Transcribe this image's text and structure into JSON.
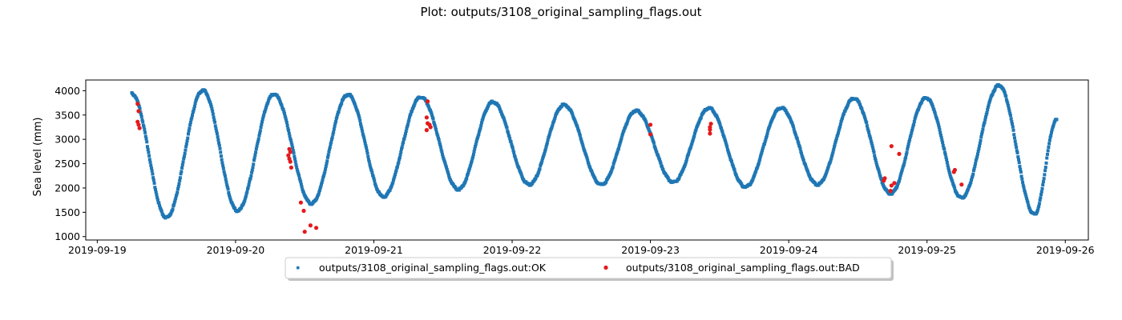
{
  "chart_data": {
    "type": "scatter",
    "title": "Plot: outputs/3108_original_sampling_flags.out",
    "xlabel": "",
    "ylabel": "Sea level (mm)",
    "x_axis": {
      "kind": "date",
      "range": [
        "2019-09-18T22:00",
        "2019-09-26T04:00"
      ],
      "ticks": [
        "2019-09-19",
        "2019-09-20",
        "2019-09-21",
        "2019-09-22",
        "2019-09-23",
        "2019-09-24",
        "2019-09-25",
        "2019-09-26"
      ]
    },
    "y_axis": {
      "range": [
        930,
        4220
      ],
      "ticks": [
        1000,
        1500,
        2000,
        2500,
        3000,
        3500,
        4000
      ]
    },
    "grid": false,
    "legend": {
      "placement": "below-center",
      "frame": true,
      "shadow": true,
      "columns": 2
    },
    "series": [
      {
        "name": "outputs/3108_original_sampling_flags.out:OK",
        "marker": "square",
        "color": "#1f77b4",
        "x_range": [
          "2019-09-19T06:00",
          "2019-09-25T22:30"
        ],
        "extrema": [
          {
            "x": "2019-09-19T06:00",
            "y": 3940
          },
          {
            "x": "2019-09-19T12:00",
            "y": 1390
          },
          {
            "x": "2019-09-19T18:20",
            "y": 4010
          },
          {
            "x": "2019-09-20T00:20",
            "y": 1530
          },
          {
            "x": "2019-09-20T06:40",
            "y": 3930
          },
          {
            "x": "2019-09-20T13:10",
            "y": 1680
          },
          {
            "x": "2019-09-20T19:30",
            "y": 3920
          },
          {
            "x": "2019-09-21T01:40",
            "y": 1820
          },
          {
            "x": "2019-09-21T08:10",
            "y": 3870
          },
          {
            "x": "2019-09-21T14:40",
            "y": 1970
          },
          {
            "x": "2019-09-21T20:40",
            "y": 3770
          },
          {
            "x": "2019-09-22T03:00",
            "y": 2070
          },
          {
            "x": "2019-09-22T09:00",
            "y": 3710
          },
          {
            "x": "2019-09-22T15:30",
            "y": 2070
          },
          {
            "x": "2019-09-22T21:30",
            "y": 3590
          },
          {
            "x": "2019-09-23T04:00",
            "y": 2120
          },
          {
            "x": "2019-09-23T10:10",
            "y": 3640
          },
          {
            "x": "2019-09-23T16:30",
            "y": 2020
          },
          {
            "x": "2019-09-23T22:40",
            "y": 3650
          },
          {
            "x": "2019-09-24T05:00",
            "y": 2070
          },
          {
            "x": "2019-09-24T11:20",
            "y": 3840
          },
          {
            "x": "2019-09-24T17:40",
            "y": 1880
          },
          {
            "x": "2019-09-24T23:50",
            "y": 3850
          },
          {
            "x": "2019-09-25T06:00",
            "y": 1800
          },
          {
            "x": "2019-09-25T12:30",
            "y": 4110
          },
          {
            "x": "2019-09-25T18:40",
            "y": 1460
          },
          {
            "x": "2019-09-25T22:30",
            "y": 3400
          }
        ]
      },
      {
        "name": "outputs/3108_original_sampling_flags.out:BAD",
        "marker": "circle",
        "color": "#e31a1c",
        "points": [
          {
            "x": "2019-09-19T07:00",
            "y": 3730
          },
          {
            "x": "2019-09-19T07:10",
            "y": 3580
          },
          {
            "x": "2019-09-19T07:00",
            "y": 3360
          },
          {
            "x": "2019-09-19T07:10",
            "y": 3300
          },
          {
            "x": "2019-09-19T07:20",
            "y": 3230
          },
          {
            "x": "2019-09-20T09:20",
            "y": 2800
          },
          {
            "x": "2019-09-20T09:30",
            "y": 2740
          },
          {
            "x": "2019-09-20T09:10",
            "y": 2670
          },
          {
            "x": "2019-09-20T09:20",
            "y": 2600
          },
          {
            "x": "2019-09-20T09:30",
            "y": 2540
          },
          {
            "x": "2019-09-20T09:40",
            "y": 2420
          },
          {
            "x": "2019-09-20T11:20",
            "y": 1700
          },
          {
            "x": "2019-09-20T11:50",
            "y": 1530
          },
          {
            "x": "2019-09-20T12:00",
            "y": 1100
          },
          {
            "x": "2019-09-20T13:00",
            "y": 1230
          },
          {
            "x": "2019-09-20T14:00",
            "y": 1180
          },
          {
            "x": "2019-09-21T09:20",
            "y": 3780
          },
          {
            "x": "2019-09-21T09:10",
            "y": 3450
          },
          {
            "x": "2019-09-21T09:20",
            "y": 3330
          },
          {
            "x": "2019-09-21T09:40",
            "y": 3300
          },
          {
            "x": "2019-09-21T09:50",
            "y": 3250
          },
          {
            "x": "2019-09-21T09:10",
            "y": 3190
          },
          {
            "x": "2019-09-23T00:00",
            "y": 3300
          },
          {
            "x": "2019-09-23T00:00",
            "y": 3100
          },
          {
            "x": "2019-09-23T10:30",
            "y": 3320
          },
          {
            "x": "2019-09-23T10:20",
            "y": 3250
          },
          {
            "x": "2019-09-23T10:20",
            "y": 3200
          },
          {
            "x": "2019-09-23T10:20",
            "y": 3120
          },
          {
            "x": "2019-09-24T16:40",
            "y": 2200
          },
          {
            "x": "2019-09-24T16:30",
            "y": 2150
          },
          {
            "x": "2019-09-24T17:50",
            "y": 2860
          },
          {
            "x": "2019-09-24T19:10",
            "y": 2700
          },
          {
            "x": "2019-09-24T18:20",
            "y": 2100
          },
          {
            "x": "2019-09-24T17:50",
            "y": 2050
          },
          {
            "x": "2019-09-24T17:40",
            "y": 1940
          },
          {
            "x": "2019-09-25T04:50",
            "y": 2370
          },
          {
            "x": "2019-09-25T04:40",
            "y": 2330
          },
          {
            "x": "2019-09-25T06:00",
            "y": 2070
          }
        ]
      }
    ]
  }
}
